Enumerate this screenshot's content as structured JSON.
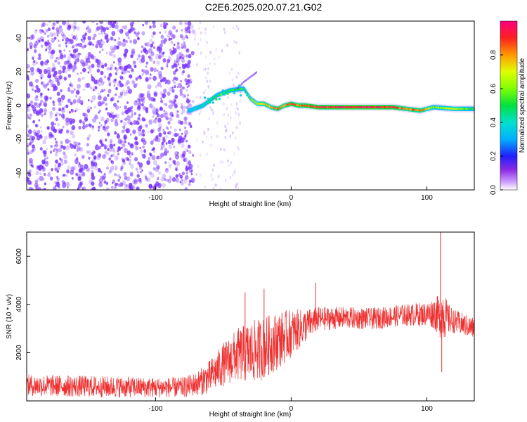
{
  "title": "C2E6.2025.020.07.21.G02",
  "colors": {
    "snr_line": "#ee3030",
    "scatter_base": "#7a33ff",
    "frame": "#000000"
  },
  "chart_data": [
    {
      "type": "heatmap",
      "title": "C2E6.2025.020.07.21.G02",
      "xlabel": "Height of straight line (km)",
      "ylabel": "Frequency (Hz)",
      "xlim": [
        -195,
        135
      ],
      "ylim": [
        -50,
        50
      ],
      "x_ticks": [
        -100,
        0,
        100
      ],
      "x_tick_labels": [
        "-100",
        "0",
        "100"
      ],
      "y_ticks": [
        -40,
        -20,
        0,
        20,
        40
      ],
      "y_tick_labels": [
        "-40",
        "-20",
        "0",
        "20",
        "40"
      ],
      "grid": false,
      "colorbar": {
        "label": "Normalized spectral amplitude",
        "range": [
          0,
          1
        ],
        "ticks": [
          0.0,
          0.2,
          0.4,
          0.6,
          0.8
        ],
        "tick_labels": [
          "0.0",
          "0.2",
          "0.4",
          "0.6",
          "0.8"
        ]
      },
      "noise_region_x": [
        -195,
        -72
      ],
      "signal_track": {
        "x": [
          -75,
          -65,
          -55,
          -45,
          -35,
          -30,
          -25,
          -20,
          -15,
          -10,
          -5,
          0,
          5,
          10,
          20,
          40,
          60,
          75,
          85,
          95,
          105,
          120,
          135
        ],
        "y": [
          -3,
          0,
          6,
          9,
          10,
          4,
          1,
          1,
          -1,
          -2,
          0,
          1,
          0,
          0,
          -1,
          -1,
          -1,
          -1,
          -2,
          -3,
          -1,
          -2,
          -2
        ],
        "amplitude": [
          0.35,
          0.4,
          0.45,
          0.5,
          0.5,
          0.6,
          0.7,
          0.8,
          0.75,
          0.85,
          0.8,
          0.9,
          0.85,
          0.9,
          0.9,
          0.95,
          0.95,
          0.9,
          0.8,
          0.85,
          0.6,
          0.7,
          0.5
        ]
      },
      "spur_track": {
        "x": [
          -40,
          -35,
          -30,
          -25
        ],
        "y": [
          10,
          14,
          17,
          20
        ]
      }
    },
    {
      "type": "line",
      "xlabel": "Height of straight line (km)",
      "ylabel": "SNR (10 * v/v)",
      "xlim": [
        -195,
        135
      ],
      "ylim": [
        0,
        7000
      ],
      "x_ticks": [
        -100,
        0,
        100
      ],
      "x_tick_labels": [
        "-100",
        "0",
        "100"
      ],
      "y_ticks": [
        2000,
        4000,
        6000
      ],
      "y_tick_labels": [
        "2000",
        "4000",
        "6000"
      ],
      "grid": false,
      "envelope": {
        "x": [
          -195,
          -150,
          -100,
          -80,
          -70,
          -60,
          -50,
          -40,
          -30,
          -20,
          -10,
          0,
          10,
          20,
          40,
          60,
          80,
          100,
          105,
          110,
          112,
          115,
          120,
          135
        ],
        "mean": [
          650,
          600,
          550,
          560,
          700,
          1000,
          1500,
          1900,
          2000,
          2200,
          2500,
          2800,
          3100,
          3400,
          3450,
          3400,
          3550,
          3600,
          3650,
          3500,
          3700,
          3400,
          3300,
          3000
        ],
        "spread": [
          450,
          450,
          420,
          420,
          500,
          700,
          900,
          1100,
          1300,
          1300,
          1200,
          1000,
          700,
          500,
          450,
          450,
          450,
          500,
          650,
          900,
          1200,
          700,
          500,
          450
        ]
      },
      "spikes": [
        {
          "x": -34,
          "y": 4500
        },
        {
          "x": -20,
          "y": 4650
        },
        {
          "x": 18,
          "y": 4900
        },
        {
          "x": 110,
          "y": 7000
        },
        {
          "x": 111,
          "y": 1200
        }
      ]
    }
  ]
}
